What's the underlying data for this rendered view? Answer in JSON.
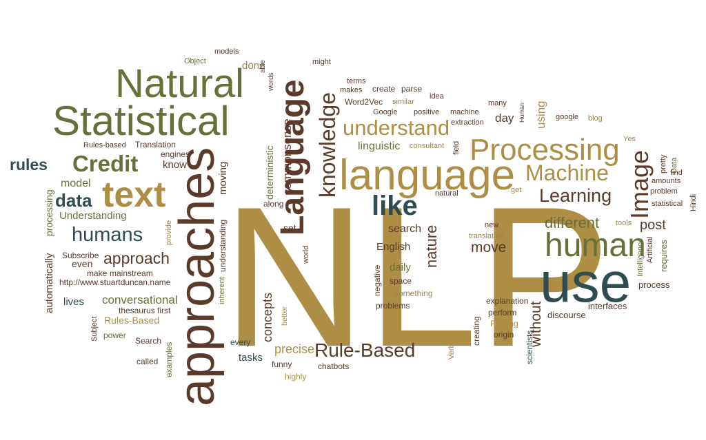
{
  "palette": {
    "olive": "#68703a",
    "brown": "#5b3a2a",
    "gold": "#ad8e44",
    "teal": "#2f4d50",
    "tan": "#9c8552"
  },
  "words": [
    {
      "id": "w-nlp",
      "text": "NLP",
      "color": "gold"
    },
    {
      "id": "w-use",
      "text": "use",
      "color": "teal"
    },
    {
      "id": "w-approaches",
      "text": "approaches",
      "color": "brown"
    },
    {
      "id": "w-language-lower",
      "text": "language",
      "color": "gold"
    },
    {
      "id": "w-language-upper",
      "text": "Language",
      "color": "brown"
    },
    {
      "id": "w-statistical",
      "text": "Statistical",
      "color": "olive"
    },
    {
      "id": "w-natural",
      "text": "Natural",
      "color": "olive"
    },
    {
      "id": "w-processing",
      "text": "Processing",
      "color": "gold"
    },
    {
      "id": "w-human",
      "text": "human",
      "color": "olive"
    },
    {
      "id": "w-text",
      "text": "text",
      "color": "gold"
    },
    {
      "id": "w-machine",
      "text": "Machine",
      "color": "gold"
    },
    {
      "id": "w-understand",
      "text": "understand",
      "color": "gold"
    },
    {
      "id": "w-knowledge",
      "text": "knowledge",
      "color": "brown"
    },
    {
      "id": "w-image",
      "text": "Image",
      "color": "brown"
    },
    {
      "id": "w-like",
      "text": "like",
      "color": "teal"
    },
    {
      "id": "w-credit",
      "text": "Credit",
      "color": "olive"
    },
    {
      "id": "w-rule-based",
      "text": "Rule-Based",
      "color": "brown"
    },
    {
      "id": "w-learning",
      "text": "Learning",
      "color": "brown"
    },
    {
      "id": "w-data",
      "text": "data",
      "color": "teal"
    },
    {
      "id": "w-rules",
      "text": "rules",
      "color": "teal"
    },
    {
      "id": "w-humans",
      "text": "humans",
      "color": "teal"
    },
    {
      "id": "w-approach",
      "text": "approach",
      "color": "brown"
    },
    {
      "id": "w-different",
      "text": "different",
      "color": "olive"
    },
    {
      "id": "w-post",
      "text": "post",
      "color": "brown"
    },
    {
      "id": "w-move",
      "text": "move",
      "color": "brown"
    },
    {
      "id": "w-nature",
      "text": "nature",
      "color": "brown"
    },
    {
      "id": "w-without",
      "text": "without",
      "color": "brown"
    },
    {
      "id": "w-commonsense",
      "text": "commonsense",
      "color": "brown"
    },
    {
      "id": "w-deterministic",
      "text": "deterministic",
      "color": "olive"
    },
    {
      "id": "w-done",
      "text": "done",
      "color": "tan"
    },
    {
      "id": "w-concepts",
      "text": "concepts",
      "color": "brown"
    },
    {
      "id": "w-precise",
      "text": "precise",
      "color": "gold"
    },
    {
      "id": "w-conversational",
      "text": "conversational",
      "color": "olive"
    },
    {
      "id": "w-understanding-big",
      "text": "Understanding",
      "color": "olive"
    },
    {
      "id": "w-search",
      "text": "search",
      "color": "brown"
    },
    {
      "id": "w-english",
      "text": "English",
      "color": "brown"
    },
    {
      "id": "w-daily",
      "text": "daily",
      "color": "olive"
    },
    {
      "id": "w-linguistic",
      "text": "linguistic",
      "color": "olive"
    },
    {
      "id": "w-model",
      "text": "model",
      "color": "olive"
    },
    {
      "id": "w-know",
      "text": "know",
      "color": "brown"
    },
    {
      "id": "w-automatically",
      "text": "automatically",
      "color": "brown"
    },
    {
      "id": "w-processing-small",
      "text": "processing",
      "color": "olive"
    },
    {
      "id": "w-lives",
      "text": "lives",
      "color": "teal"
    },
    {
      "id": "w-tasks",
      "text": "tasks",
      "color": "teal"
    },
    {
      "id": "w-rules-based-big",
      "text": "Rules-Based",
      "color": "gold"
    },
    {
      "id": "w-using",
      "text": "using",
      "color": "gold"
    },
    {
      "id": "w-day",
      "text": "day",
      "color": "brown"
    },
    {
      "id": "w-set",
      "text": "set",
      "color": "brown"
    },
    {
      "id": "w-even",
      "text": "even",
      "color": "brown"
    },
    {
      "id": "w-moving",
      "text": "moving",
      "color": "brown"
    },
    {
      "id": "w-process",
      "text": "process",
      "color": "brown"
    },
    {
      "id": "w-requires",
      "text": "requires",
      "color": "olive"
    },
    {
      "id": "w-interfaces",
      "text": "interfaces",
      "color": "brown"
    },
    {
      "id": "w-discourse",
      "text": "discourse",
      "color": "brown"
    },
    {
      "id": "w-scientists",
      "text": "scientists",
      "color": "teal"
    },
    {
      "id": "w-explanation",
      "text": "explanation",
      "color": "brown"
    },
    {
      "id": "w-perform",
      "text": "perform",
      "color": "brown"
    },
    {
      "id": "w-origin",
      "text": "origin",
      "color": "brown"
    },
    {
      "id": "w-parsing",
      "text": "Parsing",
      "color": "gold"
    },
    {
      "id": "w-creating",
      "text": "creating",
      "color": "brown"
    },
    {
      "id": "w-something",
      "text": "something",
      "color": "tan"
    },
    {
      "id": "w-problems",
      "text": "problems",
      "color": "brown"
    },
    {
      "id": "w-space",
      "text": "space",
      "color": "brown"
    },
    {
      "id": "w-negative",
      "text": "negative",
      "color": "brown"
    },
    {
      "id": "w-chatbots",
      "text": "chatbots",
      "color": "brown"
    },
    {
      "id": "w-funny",
      "text": "funny",
      "color": "brown"
    },
    {
      "id": "w-highly",
      "text": "highly",
      "color": "gold"
    },
    {
      "id": "w-every",
      "text": "every",
      "color": "teal"
    },
    {
      "id": "w-better",
      "text": "better",
      "color": "gold"
    },
    {
      "id": "w-along",
      "text": "along",
      "color": "brown"
    },
    {
      "id": "w-world",
      "text": "world",
      "color": "brown"
    },
    {
      "id": "w-inherent",
      "text": "inherent",
      "color": "olive"
    },
    {
      "id": "w-understanding-small",
      "text": "understanding",
      "color": "brown"
    },
    {
      "id": "w-search-cap",
      "text": "Search",
      "color": "brown"
    },
    {
      "id": "w-examples",
      "text": "examples",
      "color": "olive"
    },
    {
      "id": "w-called",
      "text": "called",
      "color": "brown"
    },
    {
      "id": "w-power",
      "text": "power",
      "color": "olive"
    },
    {
      "id": "w-subject",
      "text": "Subject",
      "color": "brown"
    },
    {
      "id": "w-thesaurus",
      "text": "thesaurus first",
      "color": "brown"
    },
    {
      "id": "w-url",
      "text": "http://www.stuartduncan.name",
      "color": "brown"
    },
    {
      "id": "w-make",
      "text": "make",
      "color": "brown"
    },
    {
      "id": "w-mainstream",
      "text": "mainstream",
      "color": "brown"
    },
    {
      "id": "w-subscribe",
      "text": "Subscribe",
      "color": "brown"
    },
    {
      "id": "w-provide",
      "text": "provide",
      "color": "tan"
    },
    {
      "id": "w-engines",
      "text": "engines",
      "color": "brown"
    },
    {
      "id": "w-translation",
      "text": "Translation",
      "color": "brown"
    },
    {
      "id": "w-rules-based-small",
      "text": "Rules-based",
      "color": "brown"
    },
    {
      "id": "w-object",
      "text": "Object",
      "color": "olive"
    },
    {
      "id": "w-models",
      "text": "models",
      "color": "brown"
    },
    {
      "id": "w-might",
      "text": "might",
      "color": "brown"
    },
    {
      "id": "w-terms",
      "text": "terms",
      "color": "brown"
    },
    {
      "id": "w-makes",
      "text": "makes",
      "color": "brown"
    },
    {
      "id": "w-create",
      "text": "create",
      "color": "brown"
    },
    {
      "id": "w-parse",
      "text": "parse",
      "color": "brown"
    },
    {
      "id": "w-idea",
      "text": "idea",
      "color": "brown"
    },
    {
      "id": "w-word2vec",
      "text": "Word2Vec",
      "color": "brown"
    },
    {
      "id": "w-similar",
      "text": "similar",
      "color": "tan"
    },
    {
      "id": "w-google-cap",
      "text": "Google",
      "color": "brown"
    },
    {
      "id": "w-positive",
      "text": "positive",
      "color": "brown"
    },
    {
      "id": "w-machine-small",
      "text": "machine",
      "color": "brown"
    },
    {
      "id": "w-extraction",
      "text": "extraction",
      "color": "brown"
    },
    {
      "id": "w-many",
      "text": "many",
      "color": "brown"
    },
    {
      "id": "w-google",
      "text": "google",
      "color": "brown"
    },
    {
      "id": "w-blog",
      "text": "blog",
      "color": "tan"
    },
    {
      "id": "w-yes",
      "text": "Yes",
      "color": "tan"
    },
    {
      "id": "w-pretty",
      "text": "pretty",
      "color": "brown"
    },
    {
      "id": "w-data-small",
      "text": "Data",
      "color": "olive"
    },
    {
      "id": "w-find",
      "text": "find",
      "color": "brown"
    },
    {
      "id": "w-amounts",
      "text": "amounts",
      "color": "brown"
    },
    {
      "id": "w-problem",
      "text": "problem",
      "color": "brown"
    },
    {
      "id": "w-statistical-small",
      "text": "statistical",
      "color": "brown"
    },
    {
      "id": "w-hindi",
      "text": "Hindi",
      "color": "brown"
    },
    {
      "id": "w-artificial",
      "text": "Artificial",
      "color": "brown"
    },
    {
      "id": "w-intelligence",
      "text": "Intelligence",
      "color": "olive"
    },
    {
      "id": "w-tools",
      "text": "tools",
      "color": "tan"
    },
    {
      "id": "w-new",
      "text": "new",
      "color": "brown"
    },
    {
      "id": "w-translation-small",
      "text": "translation",
      "color": "tan"
    },
    {
      "id": "w-natural-small",
      "text": "natural",
      "color": "brown"
    },
    {
      "id": "w-get",
      "text": "get",
      "color": "tan"
    },
    {
      "id": "w-consultant",
      "text": "consultant",
      "color": "tan"
    },
    {
      "id": "w-field",
      "text": "field",
      "color": "brown"
    },
    {
      "id": "w-able",
      "text": "able",
      "color": "brown"
    },
    {
      "id": "w-words",
      "text": "words",
      "color": "brown"
    },
    {
      "id": "w-verb",
      "text": "Verb",
      "color": "tan"
    },
    {
      "id": "w-human-small",
      "text": "Human",
      "color": "brown"
    }
  ]
}
